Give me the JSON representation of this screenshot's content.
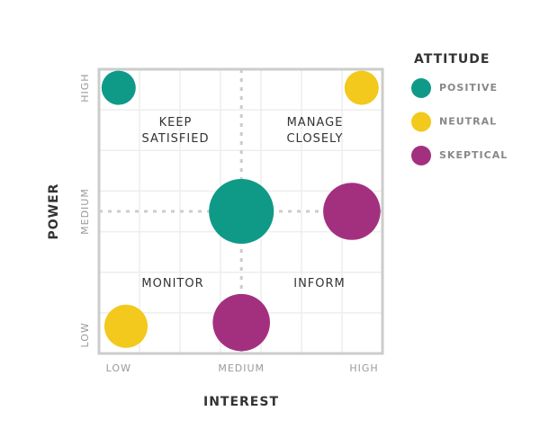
{
  "chart_data": {
    "type": "scatter",
    "x_label": "INTEREST",
    "y_label": "POWER",
    "xlim": [
      0.84,
      3.15
    ],
    "ylim": [
      0.85,
      3.15
    ],
    "xticks": [
      {
        "value": 1,
        "label": "LOW"
      },
      {
        "value": 2,
        "label": "MEDIUM"
      },
      {
        "value": 3,
        "label": "HIGH"
      }
    ],
    "yticks": [
      {
        "value": 1,
        "label": "LOW"
      },
      {
        "value": 2,
        "label": "MEDIUM"
      },
      {
        "value": 3,
        "label": "HIGH"
      }
    ],
    "legend_title": "ATTITUDE",
    "series": [
      {
        "name": "POSITIVE",
        "color": "#0f9a87",
        "x": [
          1.0,
          2.0
        ],
        "y": [
          3.0,
          2.0
        ],
        "sizes": [
          1,
          3.6
        ]
      },
      {
        "name": "NEUTRAL",
        "color": "#f2c91c",
        "x": [
          2.98,
          1.06
        ],
        "y": [
          3.0,
          1.07
        ],
        "sizes": [
          1,
          1.6
        ]
      },
      {
        "name": "SKEPTICAL",
        "color": "#a3307f",
        "x": [
          2.9,
          2.0
        ],
        "y": [
          2.0,
          1.1
        ],
        "sizes": [
          2.8,
          2.8
        ]
      }
    ],
    "annotations": [
      "KEEP SATISFIED",
      "MANAGE CLOSELY",
      "MONITOR",
      "INFORM"
    ]
  }
}
